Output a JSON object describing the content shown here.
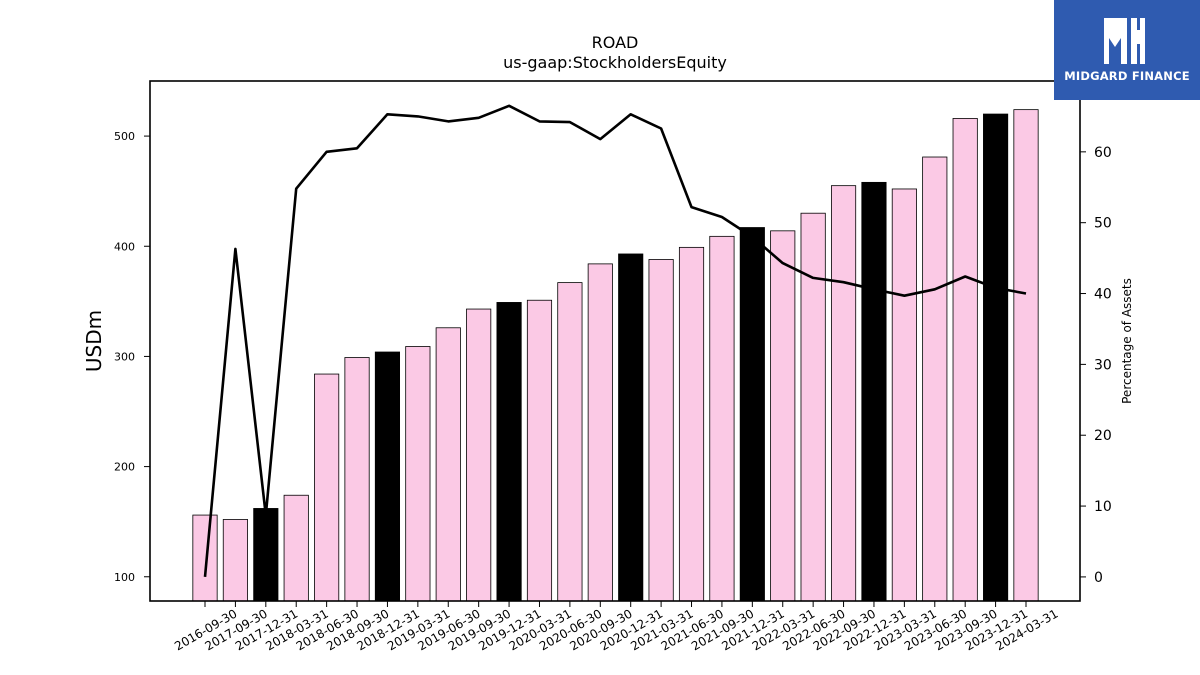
{
  "chart_data": {
    "type": "bar",
    "title": "ROAD",
    "subtitle": "us-gaap:StockholdersEquity",
    "ylabel": "USDm",
    "y2label": "Percentage of Assets",
    "ylim": [
      78,
      550
    ],
    "y2lim": [
      -3.4,
      70
    ],
    "yticks": [
      100,
      200,
      300,
      400,
      500
    ],
    "y2ticks": [
      0,
      10,
      20,
      30,
      40,
      50,
      60
    ],
    "categories": [
      "2016-09-30",
      "2017-09-30",
      "2017-12-31",
      "2018-03-31",
      "2018-06-30",
      "2018-09-30",
      "2018-12-31",
      "2019-03-31",
      "2019-06-30",
      "2019-09-30",
      "2019-12-31",
      "2020-03-31",
      "2020-06-30",
      "2020-09-30",
      "2020-12-31",
      "2021-03-31",
      "2021-06-30",
      "2021-09-30",
      "2021-12-31",
      "2022-03-31",
      "2022-06-30",
      "2022-09-30",
      "2022-12-31",
      "2023-03-31",
      "2023-06-30",
      "2023-09-30",
      "2023-12-31",
      "2024-03-31"
    ],
    "series": [
      {
        "kind": "bar",
        "values": [
          156,
          152,
          162,
          174,
          284,
          299,
          304,
          309,
          326,
          343,
          349,
          351,
          367,
          384,
          393,
          388,
          399,
          409,
          417,
          414,
          430,
          455,
          458,
          452,
          481,
          516,
          520,
          524
        ],
        "highlight": [
          false,
          false,
          true,
          false,
          false,
          false,
          true,
          false,
          false,
          false,
          true,
          false,
          false,
          false,
          true,
          false,
          false,
          false,
          true,
          false,
          false,
          false,
          true,
          false,
          false,
          false,
          true,
          false
        ]
      },
      {
        "kind": "line",
        "axis": "right",
        "values": [
          0,
          46.3,
          8.7,
          54.8,
          60,
          60.5,
          65.3,
          65,
          64.3,
          64.8,
          66.5,
          64.3,
          64.2,
          61.8,
          65.3,
          63.3,
          52.2,
          50.8,
          48,
          44.3,
          42.2,
          41.6,
          40.6,
          39.7,
          40.6,
          42.4,
          40.8,
          40
        ]
      }
    ],
    "colors": {
      "bar": "#fbc9e5",
      "bar_highlight": "#000000",
      "line": "#000000",
      "logo_bg": "#2f5bb0"
    }
  },
  "logo": {
    "text": "MIDGARD FINANCE",
    "icon": "midgard-logo-icon"
  }
}
